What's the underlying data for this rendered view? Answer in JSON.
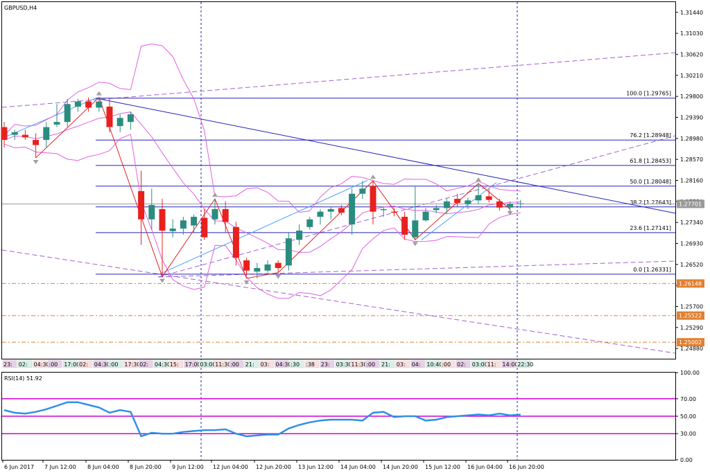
{
  "title": "GBPUSD,H4",
  "current_price": "1.27701",
  "colors": {
    "bull": "#2a8c7f",
    "bear": "#e8201e",
    "bollinger": "#e060e0",
    "fib": "#2222bb",
    "trend": "#2222bb",
    "channel": "#a060d0",
    "support": "#e08030",
    "zigzag": "#e02020",
    "rsi_line": "#2f8fe8",
    "rsi_level": "#d000d0",
    "axis": "#000000"
  },
  "chart_data": {
    "type": "candlestick",
    "symbol": "GBPUSD",
    "timeframe": "H4",
    "ylim": [
      1.2468,
      1.3164
    ],
    "y_ticks": [
      "1.31440",
      "1.31030",
      "1.30620",
      "1.30210",
      "1.29800",
      "1.29390",
      "1.28980",
      "1.28570",
      "1.28160",
      "1.27750",
      "1.27340",
      "1.26930",
      "1.26520",
      "1.26110",
      "1.25700",
      "1.25290",
      "1.24880"
    ],
    "x_ticks": [
      "6 Jun 2017",
      "7 Jun 12:00",
      "8 Jun 04:00",
      "8 Jun 20:00",
      "9 Jun 12:00",
      "12 Jun 04:00",
      "12 Jun 20:00",
      "13 Jun 12:00",
      "14 Jun 04:00",
      "14 Jun 20:00",
      "15 Jun 12:00",
      "16 Jun 04:00",
      "16 Jun 20:00"
    ],
    "candles": [
      {
        "o": 1.292,
        "h": 1.293,
        "l": 1.288,
        "c": 1.2895
      },
      {
        "o": 1.2905,
        "h": 1.2915,
        "l": 1.2895,
        "c": 1.291
      },
      {
        "o": 1.2905,
        "h": 1.2915,
        "l": 1.2895,
        "c": 1.29
      },
      {
        "o": 1.2895,
        "h": 1.2908,
        "l": 1.286,
        "c": 1.2885
      },
      {
        "o": 1.2895,
        "h": 1.293,
        "l": 1.288,
        "c": 1.292
      },
      {
        "o": 1.2925,
        "h": 1.2965,
        "l": 1.292,
        "c": 1.293
      },
      {
        "o": 1.293,
        "h": 1.2975,
        "l": 1.292,
        "c": 1.2965
      },
      {
        "o": 1.296,
        "h": 1.2975,
        "l": 1.295,
        "c": 1.297
      },
      {
        "o": 1.297,
        "h": 1.2978,
        "l": 1.295,
        "c": 1.2958
      },
      {
        "o": 1.2958,
        "h": 1.2977,
        "l": 1.295,
        "c": 1.297
      },
      {
        "o": 1.296,
        "h": 1.2975,
        "l": 1.291,
        "c": 1.292
      },
      {
        "o": 1.2922,
        "h": 1.2945,
        "l": 1.291,
        "c": 1.2938
      },
      {
        "o": 1.293,
        "h": 1.295,
        "l": 1.2915,
        "c": 1.2945
      },
      {
        "o": 1.2795,
        "h": 1.2835,
        "l": 1.269,
        "c": 1.274
      },
      {
        "o": 1.274,
        "h": 1.28,
        "l": 1.272,
        "c": 1.2768
      },
      {
        "o": 1.276,
        "h": 1.278,
        "l": 1.2628,
        "c": 1.2718
      },
      {
        "o": 1.2717,
        "h": 1.274,
        "l": 1.2705,
        "c": 1.2722
      },
      {
        "o": 1.2722,
        "h": 1.2745,
        "l": 1.271,
        "c": 1.2738
      },
      {
        "o": 1.2728,
        "h": 1.275,
        "l": 1.2715,
        "c": 1.2745
      },
      {
        "o": 1.2743,
        "h": 1.276,
        "l": 1.27,
        "c": 1.2705
      },
      {
        "o": 1.274,
        "h": 1.278,
        "l": 1.273,
        "c": 1.276
      },
      {
        "o": 1.276,
        "h": 1.2775,
        "l": 1.2715,
        "c": 1.2735
      },
      {
        "o": 1.2725,
        "h": 1.2735,
        "l": 1.265,
        "c": 1.2665
      },
      {
        "o": 1.266,
        "h": 1.2665,
        "l": 1.263,
        "c": 1.264
      },
      {
        "o": 1.2638,
        "h": 1.2655,
        "l": 1.2625,
        "c": 1.2645
      },
      {
        "o": 1.264,
        "h": 1.266,
        "l": 1.2636,
        "c": 1.2652
      },
      {
        "o": 1.2655,
        "h": 1.266,
        "l": 1.2636,
        "c": 1.2645
      },
      {
        "o": 1.265,
        "h": 1.2715,
        "l": 1.264,
        "c": 1.2703
      },
      {
        "o": 1.27,
        "h": 1.273,
        "l": 1.269,
        "c": 1.2718
      },
      {
        "o": 1.2725,
        "h": 1.2745,
        "l": 1.272,
        "c": 1.274
      },
      {
        "o": 1.2745,
        "h": 1.276,
        "l": 1.273,
        "c": 1.2755
      },
      {
        "o": 1.2755,
        "h": 1.2765,
        "l": 1.274,
        "c": 1.276
      },
      {
        "o": 1.2762,
        "h": 1.2768,
        "l": 1.2748,
        "c": 1.2753
      },
      {
        "o": 1.273,
        "h": 1.28,
        "l": 1.271,
        "c": 1.279
      },
      {
        "o": 1.279,
        "h": 1.2815,
        "l": 1.278,
        "c": 1.28
      },
      {
        "o": 1.2805,
        "h": 1.2815,
        "l": 1.273,
        "c": 1.2755
      },
      {
        "o": 1.2758,
        "h": 1.2765,
        "l": 1.2745,
        "c": 1.276
      },
      {
        "o": 1.2755,
        "h": 1.2762,
        "l": 1.2746,
        "c": 1.2753
      },
      {
        "o": 1.2745,
        "h": 1.2755,
        "l": 1.27,
        "c": 1.271
      },
      {
        "o": 1.2705,
        "h": 1.2805,
        "l": 1.27,
        "c": 1.2738
      },
      {
        "o": 1.2738,
        "h": 1.2762,
        "l": 1.2735,
        "c": 1.2755
      },
      {
        "o": 1.2758,
        "h": 1.2768,
        "l": 1.2752,
        "c": 1.2762
      },
      {
        "o": 1.2762,
        "h": 1.278,
        "l": 1.2752,
        "c": 1.2775
      },
      {
        "o": 1.278,
        "h": 1.279,
        "l": 1.2765,
        "c": 1.2772
      },
      {
        "o": 1.277,
        "h": 1.2782,
        "l": 1.276,
        "c": 1.2777
      },
      {
        "o": 1.2777,
        "h": 1.281,
        "l": 1.277,
        "c": 1.2787
      },
      {
        "o": 1.2785,
        "h": 1.28,
        "l": 1.2773,
        "c": 1.2778
      },
      {
        "o": 1.2775,
        "h": 1.278,
        "l": 1.2757,
        "c": 1.2763
      },
      {
        "o": 1.2763,
        "h": 1.2775,
        "l": 1.2755,
        "c": 1.277
      },
      {
        "o": 1.277,
        "h": 1.2778,
        "l": 1.2762,
        "c": 1.2771
      }
    ],
    "fibonacci": [
      {
        "label": "100.0 [1.29765]",
        "value": 1.29765
      },
      {
        "label": "76.2 [1.28948]",
        "value": 1.28948
      },
      {
        "label": "61.8 [1.28453]",
        "value": 1.28453
      },
      {
        "label": "50.0 [1.28048]",
        "value": 1.28048
      },
      {
        "label": "38.2 [1.27643]",
        "value": 1.27643
      },
      {
        "label": "23.6 [1.27141]",
        "value": 1.27141
      },
      {
        "label": "0.0 [1.26331]",
        "value": 1.26331
      }
    ],
    "support_levels": [
      {
        "label": "1.26148",
        "value": 1.26148
      },
      {
        "label": "1.25522",
        "value": 1.25522
      },
      {
        "label": "1.25002",
        "value": 1.25002
      }
    ],
    "session_labels": [
      "23:",
      "02:",
      "04:30",
      ":00",
      "17:00",
      "02:",
      "04:30",
      ":00",
      "17:30",
      "02:",
      "04:30",
      "15:",
      "17:00",
      "03:00",
      "11:30",
      ":00",
      "21:",
      "03:",
      "04:30",
      ":30",
      ":38",
      "23:",
      "03:30",
      "11:30",
      ":00",
      "21:",
      "03:",
      "04:",
      "10:40",
      ":00",
      "02:",
      "03:00",
      "11:",
      "14:00",
      "22:30"
    ],
    "rsi": {
      "label": "RSI(14) 51.92",
      "ylim": [
        0,
        100
      ],
      "y_ticks": [
        "100.00",
        "70.00",
        "50.00",
        "30.00",
        "0.00"
      ],
      "levels": [
        70,
        50,
        30
      ],
      "values": [
        57,
        54,
        53,
        55,
        58,
        62,
        66,
        66,
        63,
        60,
        54,
        57,
        55,
        27,
        31,
        30,
        30,
        32,
        33,
        34,
        34,
        35,
        30,
        27,
        28,
        29,
        29,
        36,
        40,
        43,
        45,
        46,
        46,
        46,
        45,
        54,
        55,
        49,
        50,
        50,
        45,
        46,
        49,
        50,
        51,
        52,
        51,
        53,
        51,
        51.92
      ]
    }
  }
}
